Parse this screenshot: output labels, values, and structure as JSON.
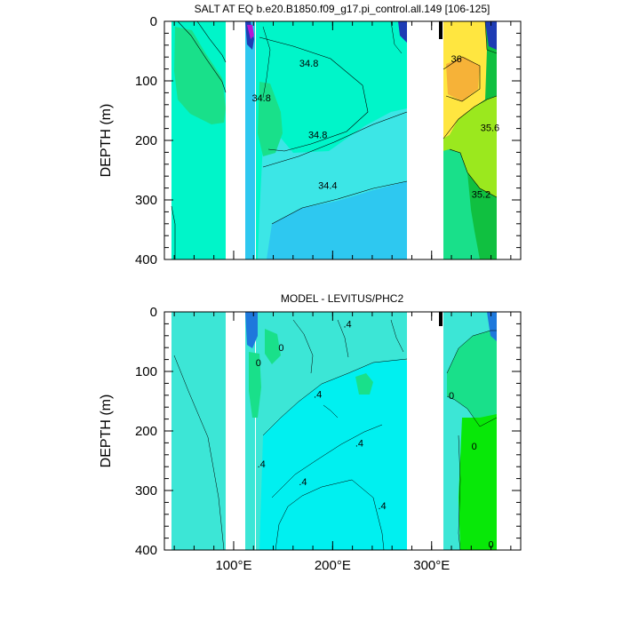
{
  "figure": {
    "colors": {
      "frame": "#000000",
      "land": "#ffffff",
      "s_low": "#2ec8f0",
      "s_mid": "#3ce6e6",
      "s_base": "#00f5c9",
      "s_green": "#19e08a",
      "s_green_dark": "#10c040",
      "s_lime": "#9be81e",
      "s_yellow": "#ffe640",
      "s_orange": "#f6b238",
      "s_blue_deep": "#1e3cb4",
      "s_purple": "#b418d4",
      "d_base": "#3ce6d6",
      "d_cyan": "#00f0f0",
      "d_green": "#19e08a",
      "d_green_bright": "#08e808",
      "d_blue": "#1e78dc"
    }
  },
  "chart_data": [
    {
      "type": "heatmap",
      "panel": "top",
      "title": "SALT AT EQ b.e20.B1850.f09_g17.pi_control.all.149 [106-125]",
      "xlabel": "",
      "ylabel": "DEPTH (m)",
      "xlim": [
        30,
        390
      ],
      "ylim": [
        400,
        0
      ],
      "x_ticks": [
        100,
        200,
        300
      ],
      "x_tick_labels": [
        "",
        "",
        ""
      ],
      "y_ticks": [
        0,
        100,
        200,
        300,
        400
      ],
      "y_tick_labels": [
        "0",
        "100",
        "200",
        "300",
        "400"
      ],
      "y_minor_step": 20,
      "x_minor_step": 20,
      "ocean_segments_lon": [
        [
          44,
          96
        ],
        [
          120,
          129
        ],
        [
          131,
          279
        ],
        [
          315,
          367
        ]
      ],
      "contour_labels": [
        {
          "text": "34.8",
          "lon": 176,
          "depth": 70
        },
        {
          "text": "34.8",
          "lon": 128,
          "depth": 128
        },
        {
          "text": "34.8",
          "lon": 185,
          "depth": 190
        },
        {
          "text": "34.4",
          "lon": 195,
          "depth": 275
        },
        {
          "text": "36",
          "lon": 325,
          "depth": 63
        },
        {
          "text": "35.6",
          "lon": 359,
          "depth": 178
        },
        {
          "text": "35.2",
          "lon": 350,
          "depth": 290
        }
      ]
    },
    {
      "type": "heatmap",
      "panel": "bottom",
      "title": "MODEL - LEVITUS/PHC2",
      "xlabel": "",
      "ylabel": "DEPTH (m)",
      "xlim": [
        30,
        390
      ],
      "ylim": [
        400,
        0
      ],
      "x_ticks": [
        100,
        200,
        300
      ],
      "x_tick_labels": [
        "100°E",
        "200°E",
        "300°E"
      ],
      "y_ticks": [
        0,
        100,
        200,
        300,
        400
      ],
      "y_tick_labels": [
        "0",
        "100",
        "200",
        "300",
        "400"
      ],
      "y_minor_step": 20,
      "x_minor_step": 20,
      "ocean_segments_lon": [
        [
          44,
          96
        ],
        [
          120,
          129
        ],
        [
          131,
          279
        ],
        [
          315,
          367
        ]
      ],
      "contour_labels": [
        {
          "text": ".4",
          "lon": 215,
          "depth": 20
        },
        {
          "text": "0",
          "lon": 148,
          "depth": 60
        },
        {
          "text": "0",
          "lon": 125,
          "depth": 85
        },
        {
          "text": ".4",
          "lon": 185,
          "depth": 138
        },
        {
          "text": "0",
          "lon": 320,
          "depth": 140
        },
        {
          "text": ".4",
          "lon": 227,
          "depth": 220
        },
        {
          "text": "0",
          "lon": 343,
          "depth": 225
        },
        {
          "text": ".4",
          "lon": 128,
          "depth": 255
        },
        {
          "text": ".4",
          "lon": 170,
          "depth": 285
        },
        {
          "text": ".4",
          "lon": 250,
          "depth": 325
        },
        {
          "text": "0",
          "lon": 360,
          "depth": 390
        }
      ]
    }
  ]
}
